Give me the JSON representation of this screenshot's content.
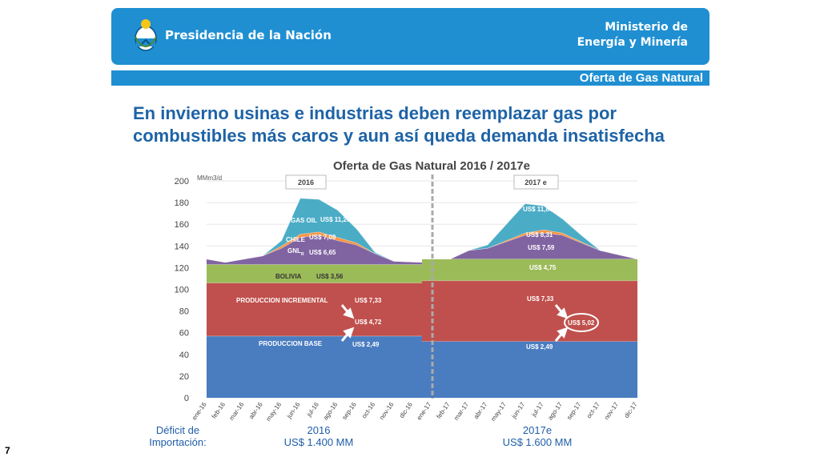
{
  "header": {
    "presidencia": "Presidencia de la Nación",
    "ministerio_line1": "Ministerio de",
    "ministerio_line2": "Energía y Minería",
    "section": "Oferta de Gas Natural"
  },
  "headline_lines": [
    "En invierno usinas e industrias deben reemplazar gas por",
    "combustibles más caros y aun así queda demanda insatisfecha"
  ],
  "colors": {
    "brand_blue": "#1f8fd2",
    "headline": "#1e63a6",
    "produccion_base": "#4a7cc0",
    "produccion_incremental": "#c0504d",
    "bolivia": "#9bbb59",
    "gnl": "#8064a2",
    "chile": "#f79646",
    "gas_oil": "#4bacc6"
  },
  "chart_data": {
    "type": "area",
    "title": "Oferta de Gas Natural 2016 / 2017e",
    "unit_label": "MMm3/d",
    "ylim": [
      0,
      200
    ],
    "yticks": [
      0,
      20,
      40,
      60,
      80,
      100,
      120,
      140,
      160,
      180,
      200
    ],
    "x": [
      "ene-16",
      "feb-16",
      "mar-16",
      "abr-16",
      "may-16",
      "jun-16",
      "jul-16",
      "ago-16",
      "sep-16",
      "oct-16",
      "nov-16",
      "dic-16",
      "ene-17",
      "feb-17",
      "mar-17",
      "abr-17",
      "may-17",
      "jun-17",
      "jul-17",
      "ago-17",
      "sep-17",
      "oct-17",
      "nov-17",
      "dic-17"
    ],
    "period_labels": [
      "2016",
      "2017 e"
    ],
    "series": [
      {
        "name": "PRODUCCION BASE",
        "color": "#4a7cc0",
        "values": [
          57,
          57,
          57,
          57,
          57,
          57,
          57,
          57,
          57,
          57,
          57,
          57,
          52,
          52,
          52,
          52,
          52,
          52,
          52,
          52,
          52,
          52,
          52,
          52
        ]
      },
      {
        "name": "PRODUCCION INCREMENTAL",
        "color": "#c0504d",
        "values": [
          49,
          49,
          49,
          49,
          49,
          49,
          49,
          49,
          49,
          49,
          49,
          49,
          56,
          56,
          56,
          56,
          56,
          56,
          56,
          56,
          56,
          56,
          56,
          56
        ]
      },
      {
        "name": "BOLIVIA",
        "color": "#9bbb59",
        "values": [
          17,
          17,
          17,
          17,
          17,
          17,
          17,
          17,
          17,
          17,
          17,
          17,
          20,
          20,
          20,
          20,
          20,
          20,
          20,
          20,
          20,
          20,
          20,
          20
        ]
      },
      {
        "name": "GNL",
        "color": "#8064a2",
        "values": [
          5,
          2,
          5,
          8,
          15,
          25,
          27,
          22,
          18,
          10,
          3,
          2,
          0,
          0,
          8,
          10,
          16,
          22,
          24,
          22,
          15,
          8,
          4,
          0
        ]
      },
      {
        "name": "CHILE",
        "color": "#f79646",
        "values": [
          0,
          0,
          0,
          0,
          2,
          3,
          3,
          3,
          2,
          0,
          0,
          0,
          0,
          0,
          0,
          0,
          1,
          2,
          3,
          2,
          1,
          0,
          0,
          0
        ]
      },
      {
        "name": "GAS OIL",
        "color": "#4bacc6",
        "values": [
          0,
          0,
          0,
          0,
          5,
          33,
          30,
          25,
          13,
          1,
          0,
          0,
          0,
          0,
          0,
          3,
          15,
          27,
          22,
          13,
          6,
          0,
          0,
          0
        ]
      }
    ],
    "labels_2016": {
      "gas_oil": "GAS OIL",
      "gas_oil_price": "US$ 11,20",
      "chile": "CHILE",
      "chile_price": "US$ 7,09",
      "gnl": "GNL",
      "gnl_sub": "R",
      "gnl_price": "US$ 6,65",
      "bolivia": "BOLIVIA",
      "bolivia_price": "US$ 3,56",
      "incremental": "PRODUCCION INCREMENTAL",
      "incremental_price": "US$ 7,33",
      "mid_price": "US$ 4,72",
      "base": "PRODUCCION BASE",
      "base_price": "US$ 2,49"
    },
    "labels_2017": {
      "gas_oil_price": "US$ 11,86",
      "chile_price": "US$ 8,31",
      "gnl_price": "US$ 7,59",
      "bolivia_price": "US$ 4,75",
      "incremental_price": "US$ 7,33",
      "mid_price": "US$ 5,02",
      "base_price": "US$ 2,49"
    }
  },
  "footer": {
    "deficit_line1": "Déficit de",
    "deficit_line2": "Importación:",
    "year_2016": "2016",
    "amount_2016": "US$ 1.400 MM",
    "year_2017": "2017e",
    "amount_2017": "US$ 1.600 MM"
  },
  "page_number": "7"
}
